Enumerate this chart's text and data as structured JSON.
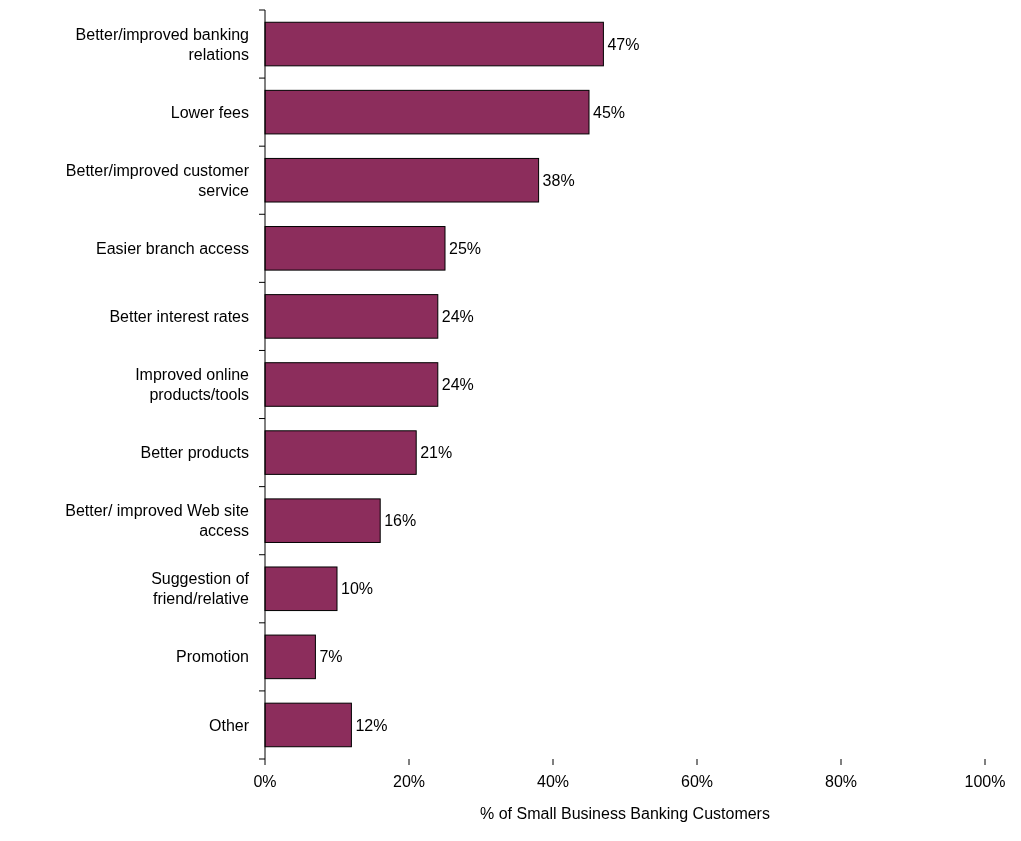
{
  "chart_data": {
    "type": "bar",
    "orientation": "horizontal",
    "xlabel": "% of Small Business Banking Customers",
    "categories": [
      "Better/improved banking relations",
      "Lower fees",
      "Better/improved customer service",
      "Easier branch access",
      "Better interest rates",
      "Improved online products/tools",
      "Better products",
      "Better/ improved Web site access",
      "Suggestion of friend/relative",
      "Promotion",
      "Other"
    ],
    "values": [
      47,
      45,
      38,
      25,
      24,
      24,
      21,
      16,
      10,
      7,
      12
    ],
    "value_labels": [
      "47%",
      "45%",
      "38%",
      "25%",
      "24%",
      "24%",
      "21%",
      "16%",
      "10%",
      "7%",
      "12%"
    ],
    "color": "#8c2d5c",
    "xlim": [
      0,
      100
    ],
    "xticks": [
      {
        "value": 0,
        "label": "0%"
      },
      {
        "value": 20,
        "label": "20%"
      },
      {
        "value": 40,
        "label": "40%"
      },
      {
        "value": 60,
        "label": "60%"
      },
      {
        "value": 80,
        "label": "80%"
      },
      {
        "value": 100,
        "label": "100%"
      }
    ],
    "grid": false
  }
}
